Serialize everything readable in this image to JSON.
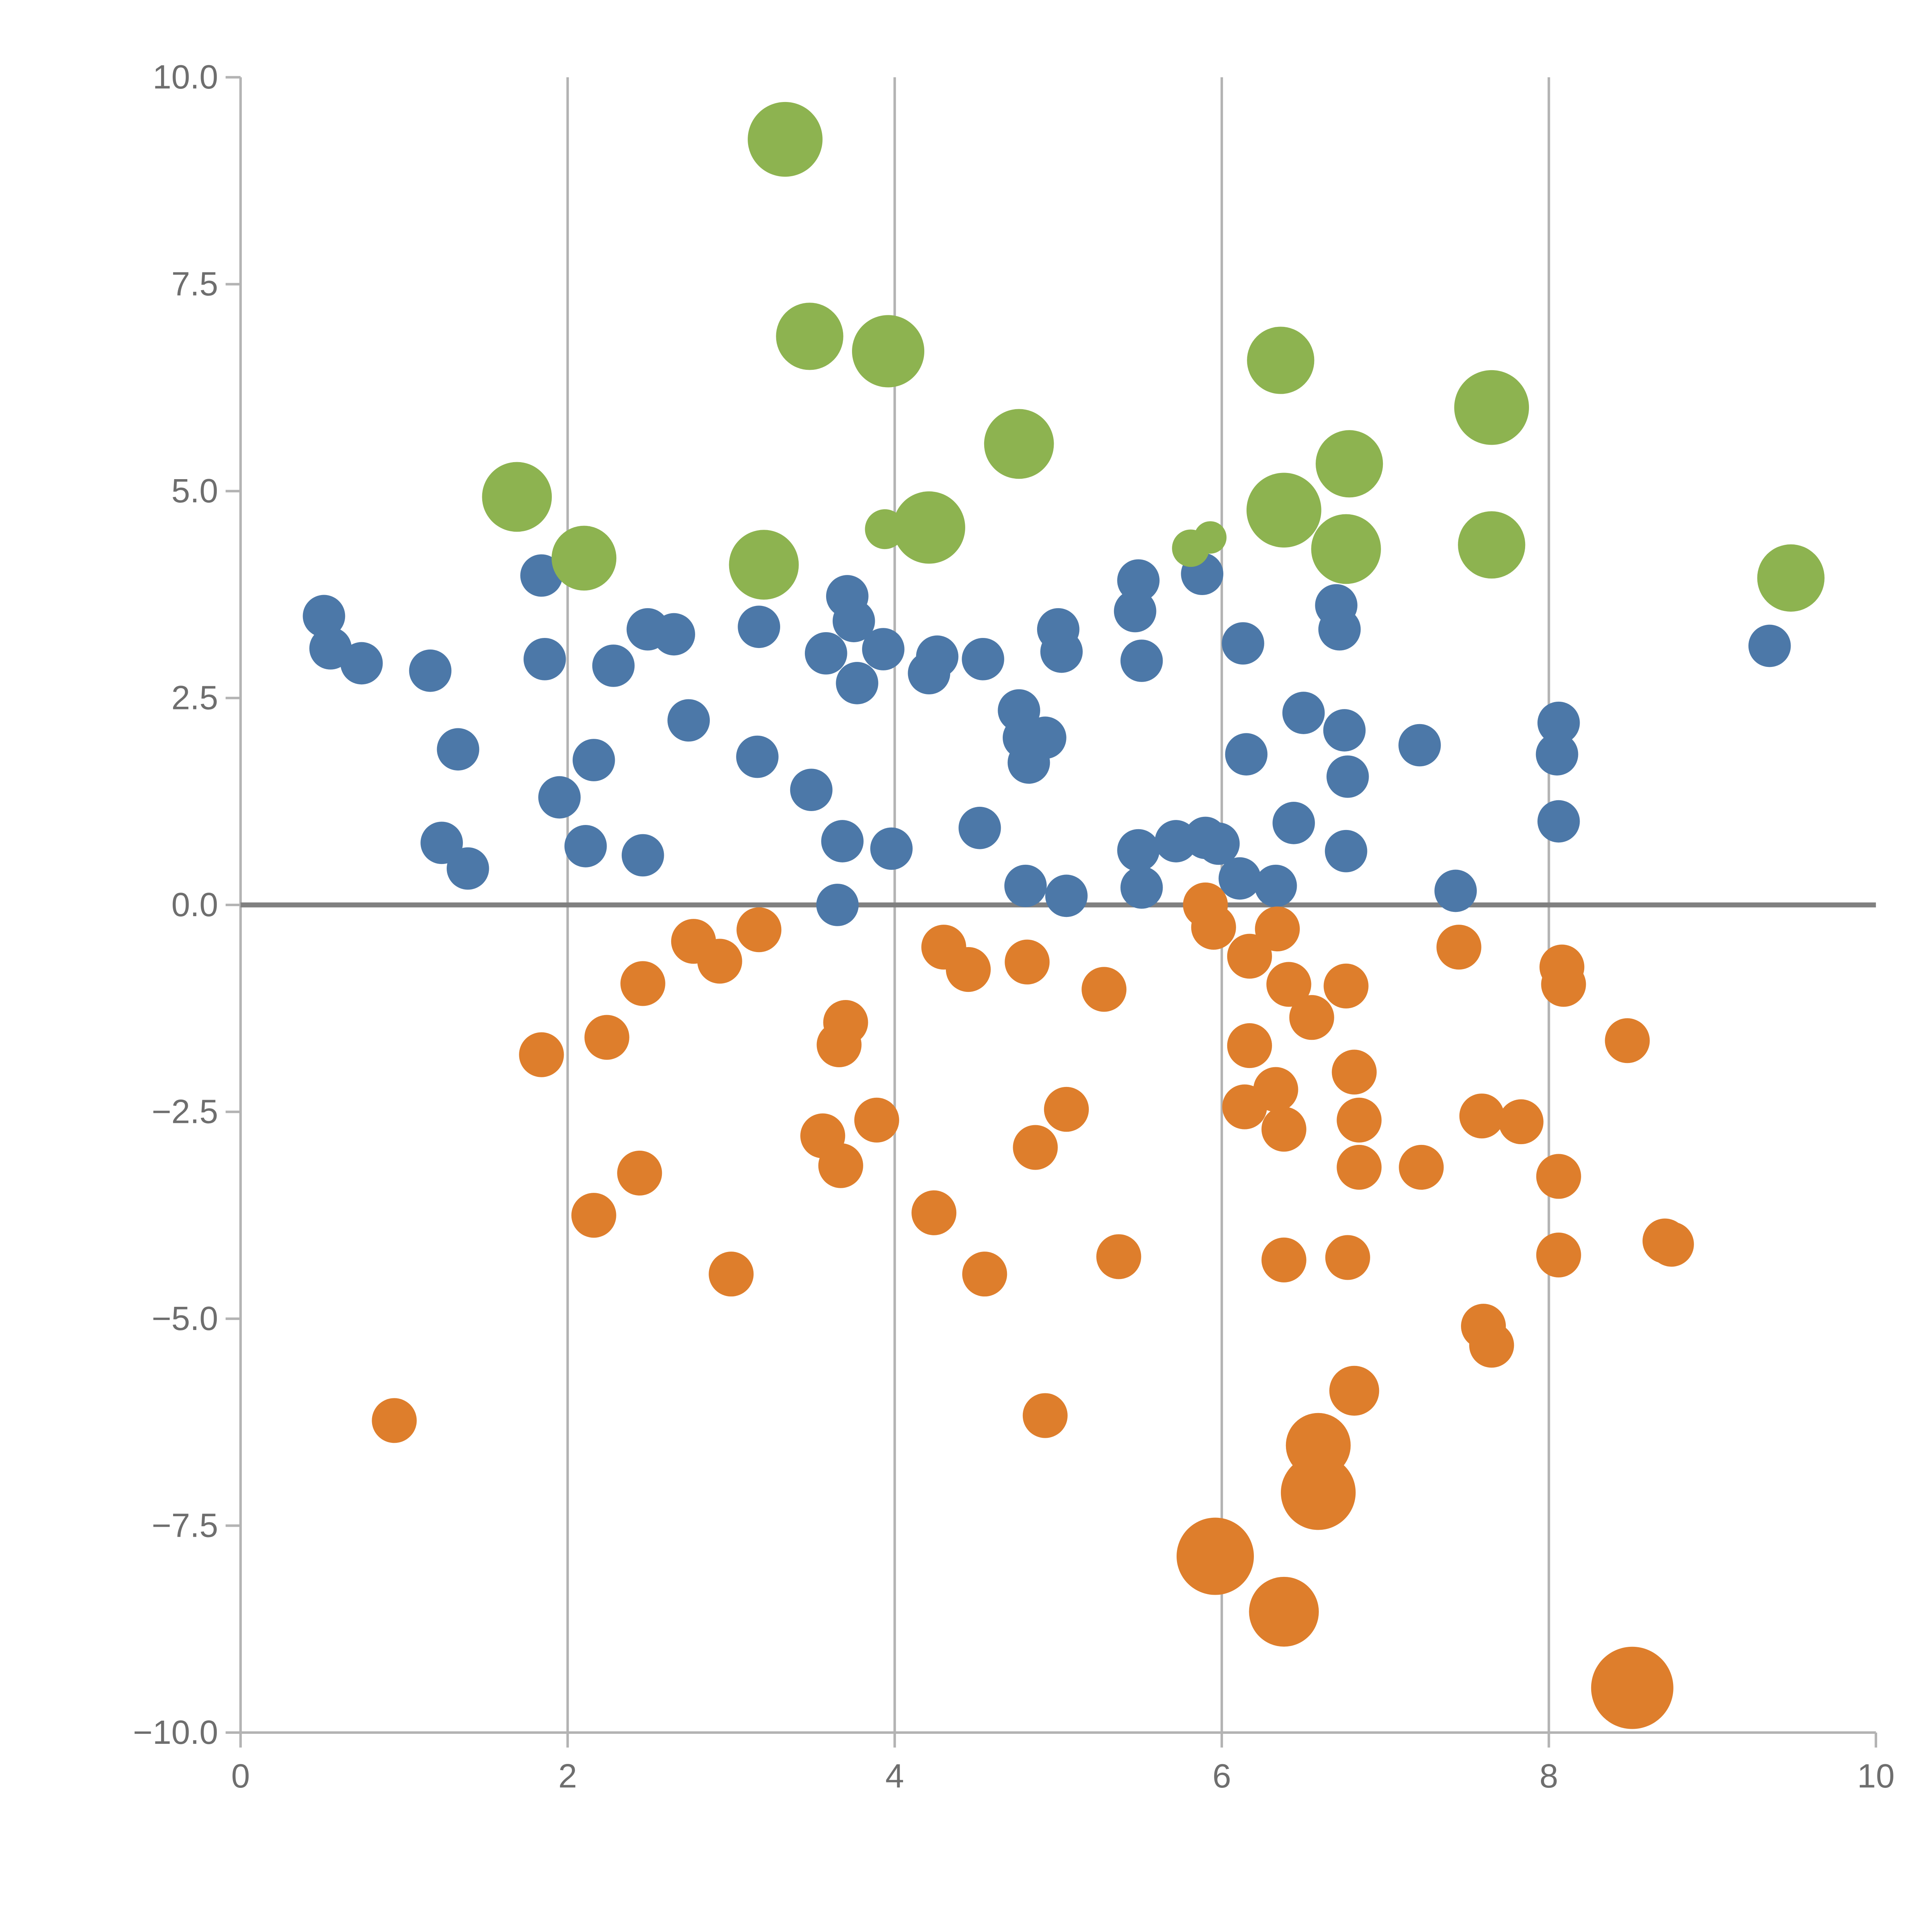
{
  "chart_data": {
    "type": "scatter",
    "title": "",
    "xlabel": "",
    "ylabel": "",
    "xlim": [
      0,
      10
    ],
    "ylim": [
      -10,
      10
    ],
    "x_ticks": [
      {
        "value": 0,
        "label": "0"
      },
      {
        "value": 2,
        "label": "2"
      },
      {
        "value": 4,
        "label": "4"
      },
      {
        "value": 6,
        "label": "6"
      },
      {
        "value": 8,
        "label": "8"
      },
      {
        "value": 10,
        "label": "10"
      }
    ],
    "y_ticks": [
      {
        "value": 10.0,
        "label": "10.0"
      },
      {
        "value": 7.5,
        "label": "7.5"
      },
      {
        "value": 5.0,
        "label": "5.0"
      },
      {
        "value": 2.5,
        "label": "2.5"
      },
      {
        "value": 0.0,
        "label": "0.0"
      },
      {
        "value": -2.5,
        "label": "−2.5"
      },
      {
        "value": -5.0,
        "label": "−5.0"
      },
      {
        "value": -7.5,
        "label": "−7.5"
      },
      {
        "value": -10.0,
        "label": "−10.0"
      }
    ],
    "grid": {
      "vertical_x": [
        0,
        2,
        4,
        6,
        8
      ],
      "horizontal_y": [],
      "zero_line_y": 0
    },
    "legend": null,
    "colors": {
      "grid": "#b3b3b3",
      "axis": "#b3b3b3",
      "zero_line": "#808080",
      "tick_label": "#6e6e6e",
      "background": "#ffffff"
    },
    "series": [
      {
        "name": "blue",
        "color": "#4c78a8",
        "default_r": 17,
        "points": [
          [
            0.51,
            3.49
          ],
          [
            0.55,
            3.1
          ],
          [
            0.74,
            2.92
          ],
          [
            1.16,
            2.83
          ],
          [
            1.33,
            1.88
          ],
          [
            1.23,
            0.75
          ],
          [
            1.39,
            0.44
          ],
          [
            1.84,
            3.98
          ],
          [
            1.86,
            2.97
          ],
          [
            1.95,
            1.3
          ],
          [
            2.16,
            1.75
          ],
          [
            2.11,
            0.71
          ],
          [
            2.28,
            2.89
          ],
          [
            2.46,
            0.6
          ],
          [
            2.49,
            3.33
          ],
          [
            2.65,
            3.27
          ],
          [
            2.74,
            2.23
          ],
          [
            3.16,
            1.79
          ],
          [
            3.17,
            3.36
          ],
          [
            3.49,
            1.39
          ],
          [
            3.58,
            3.04
          ],
          [
            3.68,
            0.77
          ],
          [
            3.65,
            0.0
          ],
          [
            3.71,
            3.73
          ],
          [
            3.75,
            3.43
          ],
          [
            3.77,
            2.68
          ],
          [
            3.93,
            3.09
          ],
          [
            3.98,
            0.68
          ],
          [
            4.21,
            2.8
          ],
          [
            4.26,
            3.0
          ],
          [
            4.52,
            0.93
          ],
          [
            4.54,
            2.97
          ],
          [
            4.76,
            2.35
          ],
          [
            4.79,
            2.02
          ],
          [
            4.82,
            1.72
          ],
          [
            4.8,
            0.23
          ],
          [
            4.92,
            2.02
          ],
          [
            5.0,
            3.33
          ],
          [
            5.02,
            3.06
          ],
          [
            5.05,
            0.11
          ],
          [
            5.49,
            3.92
          ],
          [
            5.47,
            3.55
          ],
          [
            5.51,
            2.95
          ],
          [
            5.49,
            0.66
          ],
          [
            5.51,
            0.21
          ],
          [
            5.72,
            0.77
          ],
          [
            5.9,
            0.81
          ],
          [
            5.88,
            4.0
          ],
          [
            5.98,
            0.74
          ],
          [
            6.13,
            3.16
          ],
          [
            6.11,
            0.32
          ],
          [
            6.15,
            1.82
          ],
          [
            6.33,
            0.23
          ],
          [
            6.44,
            0.99
          ],
          [
            6.5,
            2.32
          ],
          [
            6.75,
            2.11
          ],
          [
            6.77,
            1.55
          ],
          [
            6.76,
            0.65
          ],
          [
            6.72,
            3.33
          ],
          [
            6.7,
            3.62
          ],
          [
            7.21,
            1.93
          ],
          [
            7.43,
            0.17
          ],
          [
            8.06,
            2.2
          ],
          [
            8.05,
            1.82
          ],
          [
            8.06,
            1.01
          ],
          [
            9.35,
            3.13
          ]
        ]
      },
      {
        "name": "orange",
        "color": "#de7e2c",
        "default_r": 18,
        "points": [
          [
            0.94,
            -6.23
          ],
          [
            1.84,
            -1.81
          ],
          [
            2.24,
            -1.6
          ],
          [
            2.16,
            -3.75
          ],
          [
            2.44,
            -3.24
          ],
          [
            2.46,
            -0.95
          ],
          [
            2.77,
            -0.44
          ],
          [
            2.93,
            -0.68
          ],
          [
            3.0,
            -4.46
          ],
          [
            3.17,
            -0.3
          ],
          [
            3.56,
            -2.79
          ],
          [
            3.67,
            -3.15
          ],
          [
            3.66,
            -1.69
          ],
          [
            3.7,
            -1.42
          ],
          [
            3.89,
            -2.6
          ],
          [
            4.24,
            -3.72
          ],
          [
            4.3,
            -0.51
          ],
          [
            4.45,
            -0.78
          ],
          [
            4.55,
            -4.46
          ],
          [
            4.81,
            -0.69
          ],
          [
            4.86,
            -2.93
          ],
          [
            4.92,
            -6.17
          ],
          [
            5.05,
            -2.47
          ],
          [
            5.28,
            -1.02
          ],
          [
            5.37,
            -4.25
          ],
          [
            5.9,
            0.0
          ],
          [
            5.95,
            -0.27
          ],
          [
            6.17,
            -0.62
          ],
          [
            6.17,
            -1.7
          ],
          [
            6.14,
            -2.44
          ],
          [
            6.33,
            -2.23
          ],
          [
            6.38,
            -2.71
          ],
          [
            6.34,
            -0.29
          ],
          [
            6.41,
            -0.96
          ],
          [
            6.55,
            -1.36
          ],
          [
            6.38,
            -4.29
          ],
          [
            6.76,
            -0.98
          ],
          [
            6.81,
            -2.02
          ],
          [
            6.84,
            -2.6
          ],
          [
            6.84,
            -3.17
          ],
          [
            6.77,
            -4.26
          ],
          [
            6.81,
            -5.87,
            20
          ],
          [
            6.59,
            -6.53,
            26
          ],
          [
            6.59,
            -7.1,
            30
          ],
          [
            5.96,
            -7.87,
            31
          ],
          [
            6.38,
            -8.54,
            28
          ],
          [
            7.22,
            -3.17
          ],
          [
            7.45,
            -0.51
          ],
          [
            7.6,
            -5.09
          ],
          [
            7.65,
            -5.32
          ],
          [
            7.59,
            -2.55
          ],
          [
            7.83,
            -2.62
          ],
          [
            8.06,
            -3.28
          ],
          [
            8.08,
            -0.75
          ],
          [
            8.09,
            -0.96
          ],
          [
            8.06,
            -4.23
          ],
          [
            8.48,
            -1.64
          ],
          [
            8.71,
            -4.06
          ],
          [
            8.75,
            -4.1
          ],
          [
            8.51,
            -9.46,
            33
          ]
        ]
      },
      {
        "name": "green",
        "color": "#8db350",
        "default_r": 28,
        "points": [
          [
            3.33,
            9.25,
            30
          ],
          [
            3.48,
            6.87,
            27
          ],
          [
            3.96,
            6.69,
            29
          ],
          [
            1.69,
            4.93,
            28
          ],
          [
            2.1,
            4.19,
            26
          ],
          [
            3.2,
            4.11,
            28
          ],
          [
            3.94,
            4.54,
            16
          ],
          [
            4.21,
            4.56,
            29
          ],
          [
            4.76,
            5.57,
            28
          ],
          [
            5.81,
            4.31,
            15
          ],
          [
            5.93,
            4.44,
            13
          ],
          [
            6.36,
            6.58,
            27
          ],
          [
            6.38,
            4.77,
            30
          ],
          [
            6.78,
            5.33,
            27
          ],
          [
            6.76,
            4.3,
            28
          ],
          [
            7.65,
            6.01,
            30
          ],
          [
            7.65,
            4.35,
            27
          ],
          [
            9.48,
            3.95,
            27
          ]
        ]
      }
    ]
  }
}
